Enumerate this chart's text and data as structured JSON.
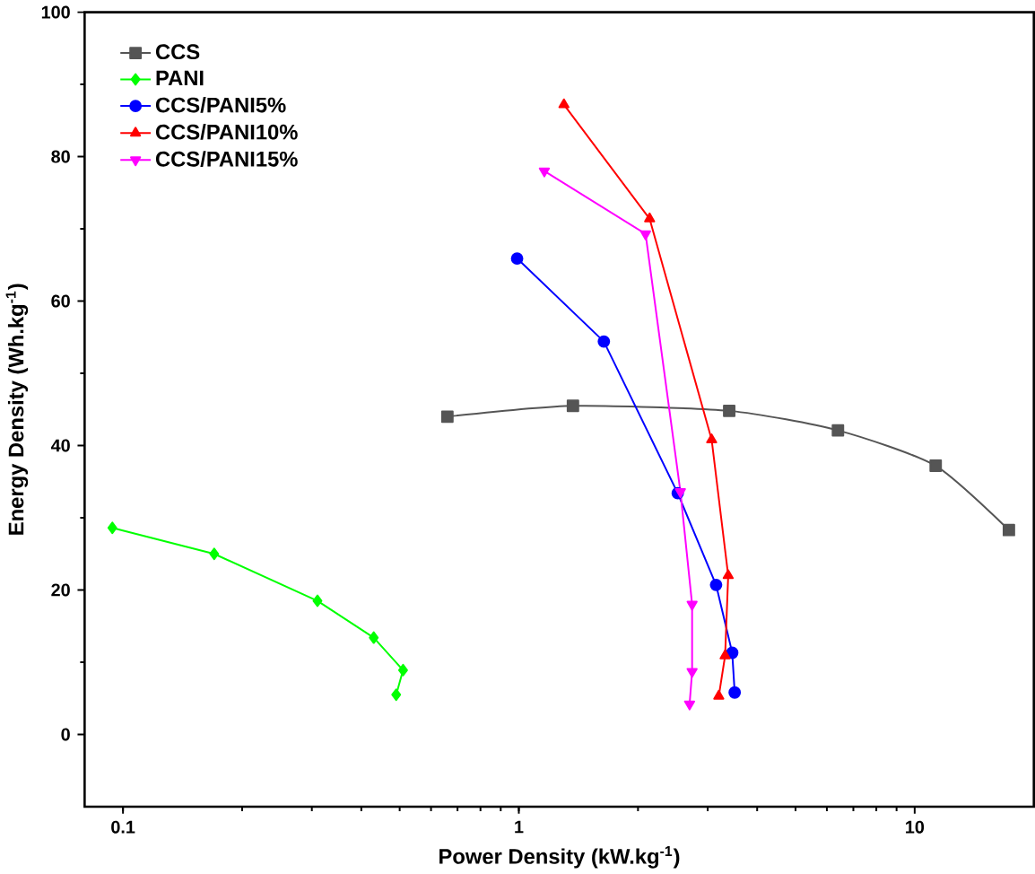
{
  "chart_data": {
    "type": "line",
    "xlabel": "Power Density (kW.kg$^{-1}$)",
    "ylabel": "Energy Density (Wh.kg$^{-1}$)",
    "log": "x",
    "xlim": [
      0.08,
      20
    ],
    "xticks": [
      0.1,
      1,
      10
    ],
    "ylim": [
      -10,
      100
    ],
    "yticks": [
      0,
      20,
      40,
      60,
      80,
      100
    ],
    "legend": "top left",
    "grid": false,
    "series": [
      {
        "name": "CCS",
        "color": "#555555",
        "marker": "square",
        "x": [
          0.66,
          1.37,
          3.4,
          6.4,
          11.3,
          17.3
        ],
        "values": [
          44,
          45.5,
          44.8,
          42.1,
          37.2,
          28.3
        ]
      },
      {
        "name": "PANI",
        "color": "#00ff00",
        "marker": "diamond",
        "x": [
          0.094,
          0.17,
          0.31,
          0.43,
          0.51,
          0.49
        ],
        "values": [
          28.6,
          25,
          18.5,
          13.4,
          8.9,
          5.5
        ]
      },
      {
        "name": "CCS/PANI5%",
        "color": "#0000ff",
        "marker": "circle",
        "x": [
          0.99,
          1.64,
          2.52,
          3.15,
          3.46,
          3.51
        ],
        "values": [
          65.9,
          54.4,
          33.4,
          20.7,
          11.3,
          5.8
        ]
      },
      {
        "name": "CCS/PANI10%",
        "color": "#ff0000",
        "marker": "triangle",
        "x": [
          1.3,
          2.14,
          3.07,
          3.38,
          3.32,
          3.2
        ],
        "values": [
          87.2,
          71.4,
          40.8,
          22,
          10.9,
          5.3
        ]
      },
      {
        "name": "CCS/PANI15%",
        "color": "#ff00ff",
        "marker": "triangle down",
        "x": [
          1.16,
          2.09,
          2.56,
          2.74,
          2.74,
          2.7
        ],
        "values": [
          78,
          69.3,
          33.6,
          18,
          8.7,
          4.2
        ]
      }
    ]
  }
}
